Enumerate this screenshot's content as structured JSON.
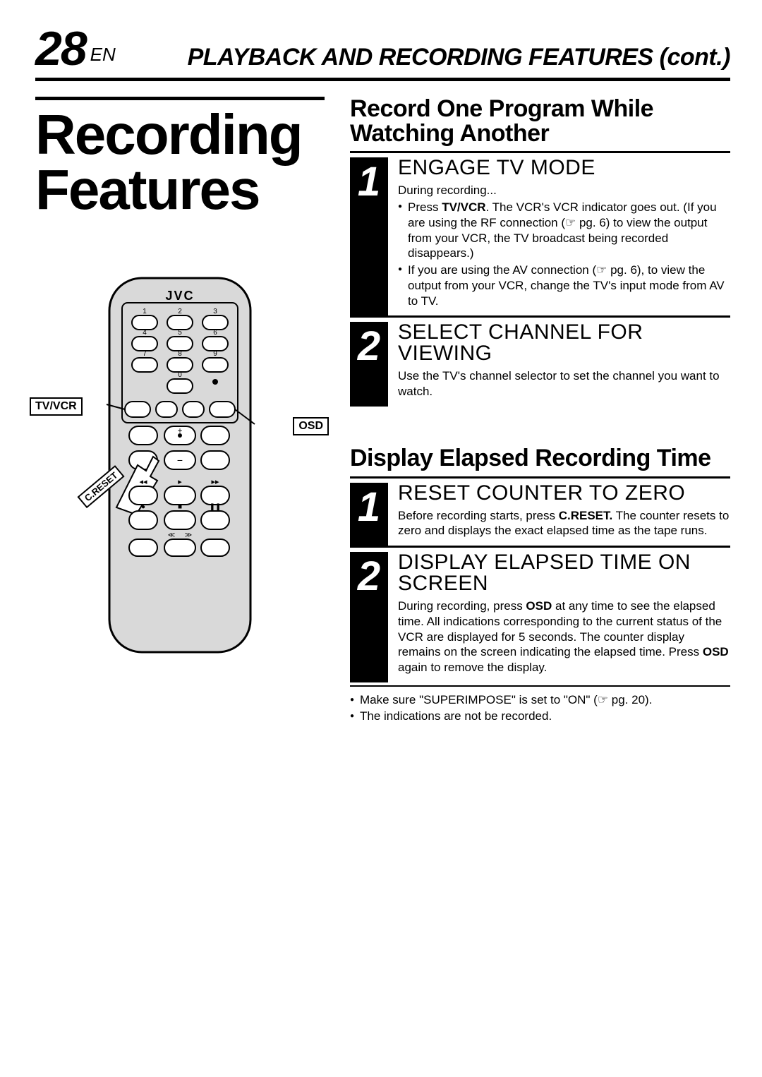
{
  "page": {
    "num": "28",
    "lang": "EN",
    "title": "PLAYBACK AND RECORDING FEATURES (cont.)"
  },
  "lead": "Recording Features",
  "remote": {
    "brand": "JVC",
    "labels": {
      "tvvcr": "TV/VCR",
      "osd": "OSD",
      "creset": "C.RESET"
    },
    "digits": [
      "1",
      "2",
      "3",
      "4",
      "5",
      "6",
      "7",
      "8",
      "9",
      "0"
    ]
  },
  "section1": {
    "title": "Record One Program While Watching Another",
    "steps": [
      {
        "num": "1",
        "head": "ENGAGE TV MODE",
        "lead": "During recording...",
        "bullets": [
          "Press <b>TV/VCR</b>. The VCR's VCR indicator goes out. (If you are using the RF connection (☞ pg. 6) to view the output from your VCR, the TV broadcast being recorded disappears.)",
          "If you are using the AV connection (☞ pg. 6), to view the output from your VCR, change the TV's input mode from AV to TV."
        ]
      },
      {
        "num": "2",
        "head": "SELECT CHANNEL FOR VIEWING",
        "text": "Use the TV's channel selector to set the channel you want to watch."
      }
    ]
  },
  "section2": {
    "title": "Display Elapsed Recording Time",
    "steps": [
      {
        "num": "1",
        "head": "RESET COUNTER TO ZERO",
        "text": "Before recording starts, press <b>C.RESET.</b> The counter resets to zero and displays the exact elapsed time as the tape runs."
      },
      {
        "num": "2",
        "head": "DISPLAY ELAPSED TIME ON SCREEN",
        "text": "During recording, press <b>OSD</b> at any time to see the elapsed time. All indications corresponding to the current status of the VCR are displayed for 5 seconds. The counter display remains on the screen indicating the elapsed time. Press <b>OSD</b> again to remove the display."
      }
    ],
    "notes": [
      "Make sure \"SUPERIMPOSE\" is set to \"ON\" (☞ pg. 20).",
      "The indications are not be recorded."
    ]
  },
  "colors": {
    "bg": "#ffffff",
    "fg": "#000000",
    "remote_fill": "#d9d9d9",
    "remote_stroke": "#000000",
    "button_fill": "#ffffff"
  }
}
